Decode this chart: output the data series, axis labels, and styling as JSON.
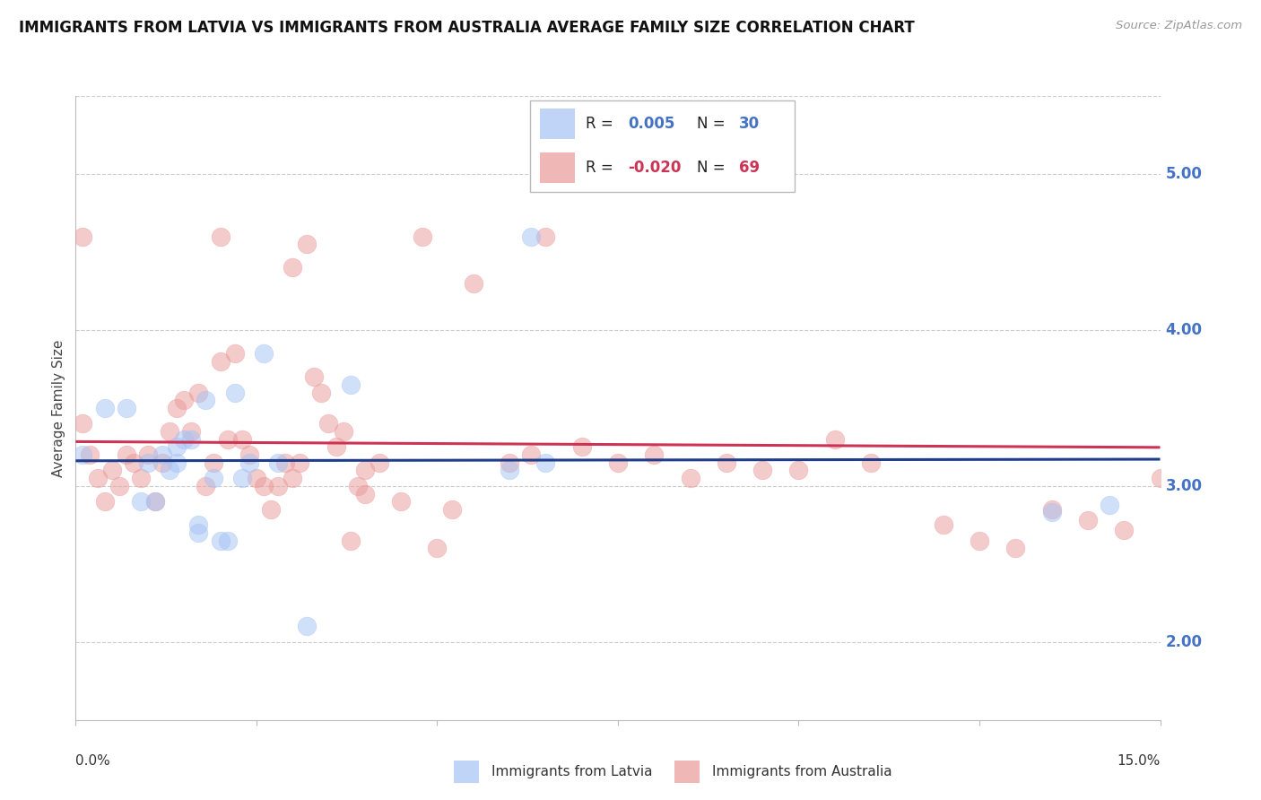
{
  "title": "IMMIGRANTS FROM LATVIA VS IMMIGRANTS FROM AUSTRALIA AVERAGE FAMILY SIZE CORRELATION CHART",
  "source": "Source: ZipAtlas.com",
  "ylabel": "Average Family Size",
  "xmin": 0.0,
  "xmax": 0.15,
  "ymin": 1.5,
  "ymax": 5.5,
  "yticks": [
    2.0,
    3.0,
    4.0,
    5.0
  ],
  "blue_color": "#a4c2f4",
  "pink_color": "#ea9999",
  "blue_line_color": "#1f3d8a",
  "pink_line_color": "#cc3355",
  "blue_points_x": [
    0.001,
    0.004,
    0.007,
    0.009,
    0.01,
    0.011,
    0.012,
    0.013,
    0.014,
    0.014,
    0.015,
    0.016,
    0.017,
    0.017,
    0.018,
    0.019,
    0.02,
    0.021,
    0.022,
    0.023,
    0.024,
    0.026,
    0.028,
    0.032,
    0.038,
    0.06,
    0.063,
    0.065,
    0.135,
    0.143
  ],
  "blue_points_y": [
    3.2,
    3.5,
    3.5,
    2.9,
    3.15,
    2.9,
    3.2,
    3.1,
    3.25,
    3.15,
    3.3,
    3.3,
    2.75,
    2.7,
    3.55,
    3.05,
    2.65,
    2.65,
    3.6,
    3.05,
    3.15,
    3.85,
    3.15,
    2.1,
    3.65,
    3.1,
    4.6,
    3.15,
    2.83,
    2.88
  ],
  "pink_points_x": [
    0.001,
    0.001,
    0.002,
    0.003,
    0.004,
    0.005,
    0.006,
    0.007,
    0.008,
    0.009,
    0.01,
    0.011,
    0.012,
    0.013,
    0.014,
    0.015,
    0.016,
    0.017,
    0.018,
    0.019,
    0.02,
    0.021,
    0.022,
    0.023,
    0.024,
    0.025,
    0.026,
    0.027,
    0.028,
    0.029,
    0.03,
    0.031,
    0.032,
    0.033,
    0.034,
    0.035,
    0.036,
    0.037,
    0.038,
    0.039,
    0.04,
    0.042,
    0.045,
    0.048,
    0.05,
    0.052,
    0.055,
    0.06,
    0.063,
    0.065,
    0.07,
    0.075,
    0.08,
    0.085,
    0.09,
    0.095,
    0.1,
    0.105,
    0.11,
    0.12,
    0.125,
    0.13,
    0.135,
    0.14,
    0.145,
    0.15,
    0.02,
    0.03,
    0.04
  ],
  "pink_points_y": [
    3.4,
    4.6,
    3.2,
    3.05,
    2.9,
    3.1,
    3.0,
    3.2,
    3.15,
    3.05,
    3.2,
    2.9,
    3.15,
    3.35,
    3.5,
    3.55,
    3.35,
    3.6,
    3.0,
    3.15,
    4.6,
    3.3,
    3.85,
    3.3,
    3.2,
    3.05,
    3.0,
    2.85,
    3.0,
    3.15,
    3.05,
    3.15,
    4.55,
    3.7,
    3.6,
    3.4,
    3.25,
    3.35,
    2.65,
    3.0,
    2.95,
    3.15,
    2.9,
    4.6,
    2.6,
    2.85,
    4.3,
    3.15,
    3.2,
    4.6,
    3.25,
    3.15,
    3.2,
    3.05,
    3.15,
    3.1,
    3.1,
    3.3,
    3.15,
    2.75,
    2.65,
    2.6,
    2.85,
    2.78,
    2.72,
    3.05,
    3.8,
    4.4,
    3.1
  ]
}
